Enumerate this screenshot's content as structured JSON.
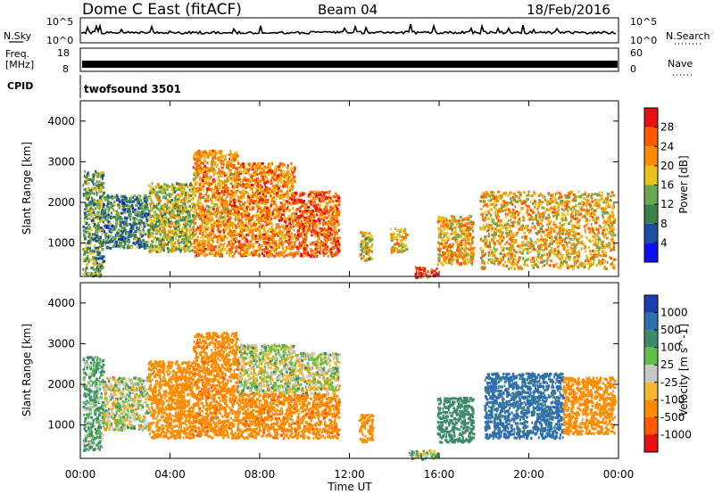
{
  "header": {
    "station": "Dome C East (fitACF)",
    "beam": "Beam 04",
    "date": "18/Feb/2016"
  },
  "status_panels": {
    "nsky_label": "N.Sky",
    "nsky_ticks": [
      "10^5",
      "10^0"
    ],
    "nsearch_label": "N.Search",
    "nsearch_ticks": [
      "10^5",
      "10^0"
    ],
    "freq_label": "Freq.",
    "freq_unit": "[MHz]",
    "freq_ticks": [
      "18",
      "8"
    ],
    "nave_label": "Nave",
    "nave_ticks": [
      "60",
      "0"
    ],
    "cpid_label": "CPID",
    "cpid_value": "twofsound 3501"
  },
  "colors": {
    "power_scale": [
      "#0b12f0",
      "#1a4fa3",
      "#3b7f4a",
      "#6aa84f",
      "#e8c21a",
      "#ff8c00",
      "#ff5a00",
      "#e81010"
    ],
    "velocity_scale": [
      "#1f3fb0",
      "#2f6fae",
      "#3c8a6a",
      "#5ec24a",
      "#c8c8c8",
      "#f7b733",
      "#ff8c00",
      "#ff5a00",
      "#e81010"
    ]
  },
  "chart_data": [
    {
      "type": "heatmap",
      "title": "Power",
      "ylabel": "Slant Range [km]",
      "colorbar_label": "Power [dB]",
      "colorbar_ticks": [
        "28",
        "24",
        "20",
        "16",
        "12",
        "8",
        "4"
      ],
      "x_ticks": [
        "00:00",
        "04:00",
        "08:00",
        "12:00",
        "16:00",
        "20:00",
        "00:00"
      ],
      "y_ticks": [
        "4000",
        "3000",
        "2000",
        "1000"
      ],
      "xlim": [
        0,
        24
      ],
      "ylim": [
        180,
        4500
      ],
      "clim": [
        0,
        32
      ],
      "echo_regions": [
        {
          "t0": 0.1,
          "t1": 1.0,
          "r0": 180,
          "r1": 2800,
          "v": 12
        },
        {
          "t0": 1.0,
          "t1": 3.0,
          "r0": 900,
          "r1": 2200,
          "v": 10
        },
        {
          "t0": 3.0,
          "t1": 5.0,
          "r0": 800,
          "r1": 2500,
          "v": 16
        },
        {
          "t0": 5.0,
          "t1": 7.0,
          "r0": 700,
          "r1": 3300,
          "v": 22
        },
        {
          "t0": 7.0,
          "t1": 9.5,
          "r0": 700,
          "r1": 3000,
          "v": 23
        },
        {
          "t0": 9.5,
          "t1": 11.5,
          "r0": 700,
          "r1": 2300,
          "v": 26
        },
        {
          "t0": 12.4,
          "t1": 13.0,
          "r0": 600,
          "r1": 1300,
          "v": 18
        },
        {
          "t0": 13.8,
          "t1": 14.5,
          "r0": 800,
          "r1": 1400,
          "v": 20
        },
        {
          "t0": 14.9,
          "t1": 15.9,
          "r0": 180,
          "r1": 450,
          "v": 30
        },
        {
          "t0": 15.9,
          "t1": 17.5,
          "r0": 500,
          "r1": 1700,
          "v": 21
        },
        {
          "t0": 17.8,
          "t1": 23.8,
          "r0": 400,
          "r1": 2300,
          "v": 20
        }
      ]
    },
    {
      "type": "heatmap",
      "title": "Velocity",
      "ylabel": "Slant Range [km]",
      "xlabel": "Time UT",
      "colorbar_label": "Velocity [m s^-1]",
      "colorbar_ticks": [
        "1000",
        "500",
        "100",
        "25",
        "-25",
        "-100",
        "-500",
        "-1000"
      ],
      "x_ticks": [
        "00:00",
        "04:00",
        "08:00",
        "12:00",
        "16:00",
        "20:00",
        "00:00"
      ],
      "y_ticks": [
        "4000",
        "3000",
        "2000",
        "1000"
      ],
      "xlim": [
        0,
        24
      ],
      "ylim": [
        180,
        4500
      ],
      "echo_regions": [
        {
          "t0": 0.1,
          "t1": 1.0,
          "r0": 400,
          "r1": 2700,
          "v": 100
        },
        {
          "t0": 1.0,
          "t1": 3.0,
          "r0": 900,
          "r1": 2200,
          "v": 0
        },
        {
          "t0": 3.0,
          "t1": 5.0,
          "r0": 700,
          "r1": 2600,
          "v": -300
        },
        {
          "t0": 5.0,
          "t1": 7.0,
          "r0": 700,
          "r1": 3300,
          "v": -400
        },
        {
          "t0": 7.0,
          "t1": 9.5,
          "r0": 1800,
          "r1": 3000,
          "v": 0
        },
        {
          "t0": 7.0,
          "t1": 11.5,
          "r0": 700,
          "r1": 1800,
          "v": -400
        },
        {
          "t0": 9.5,
          "t1": 11.5,
          "r0": 1800,
          "r1": 2800,
          "v": 0
        },
        {
          "t0": 12.4,
          "t1": 13.0,
          "r0": 600,
          "r1": 1300,
          "v": -300
        },
        {
          "t0": 14.6,
          "t1": 15.9,
          "r0": 180,
          "r1": 400,
          "v": 60
        },
        {
          "t0": 15.9,
          "t1": 17.5,
          "r0": 600,
          "r1": 1700,
          "v": 300
        },
        {
          "t0": 18.0,
          "t1": 21.5,
          "r0": 700,
          "r1": 2300,
          "v": 600
        },
        {
          "t0": 21.5,
          "t1": 23.8,
          "r0": 800,
          "r1": 2200,
          "v": -300
        }
      ]
    }
  ]
}
